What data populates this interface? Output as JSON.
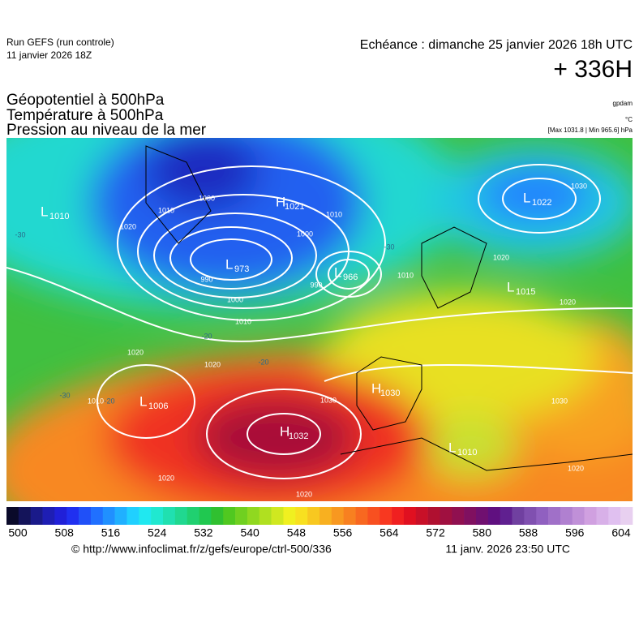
{
  "header": {
    "run": "Run GEFS (run controle)",
    "run_date": "11 janvier 2026 18Z",
    "forecast": "Echéance : dimanche 25 janvier 2026 18h UTC",
    "lead": "+ 336H"
  },
  "titles": [
    "Géopotentiel à 500hPa",
    "Température à 500hPa",
    "Pression au niveau de la mer"
  ],
  "units": [
    "gpdam",
    "°C",
    "[Max 1031.8 | Min 965.6] hPa"
  ],
  "map": {
    "centers": [
      {
        "letter": "L",
        "pressure": 1010
      },
      {
        "letter": "H",
        "pressure": 1021
      },
      {
        "letter": "L",
        "pressure": 973
      },
      {
        "letter": "L",
        "pressure": 966
      },
      {
        "letter": "L",
        "pressure": 1022
      },
      {
        "letter": "L",
        "pressure": 1015
      },
      {
        "letter": "H",
        "pressure": 1030
      },
      {
        "letter": "L",
        "pressure": 1006
      },
      {
        "letter": "H",
        "pressure": 1032
      },
      {
        "letter": "L",
        "pressure": 1010
      }
    ],
    "isobar_labels": [
      1020,
      1010,
      1000,
      990,
      1000,
      1010,
      1000,
      1010,
      990,
      1020,
      1020,
      1010,
      1030,
      1020,
      1020,
      1020,
      1020,
      1030,
      1030,
      1020,
      1010
    ],
    "isotherm_labels": [
      -30,
      -30,
      -20,
      -20,
      -20,
      -30
    ]
  },
  "colorbar": {
    "colors": [
      "#0a0a2a",
      "#14145a",
      "#1a1a8a",
      "#1e1eb4",
      "#2020d8",
      "#2030f0",
      "#2050f8",
      "#2070ff",
      "#2090ff",
      "#20b0ff",
      "#20d0ff",
      "#20e8f0",
      "#20e8d0",
      "#20e0b0",
      "#20d890",
      "#20d070",
      "#20c850",
      "#30c030",
      "#50c820",
      "#70d020",
      "#90d820",
      "#b0e020",
      "#d0e820",
      "#f0f020",
      "#f8e020",
      "#f8c820",
      "#f8b020",
      "#f89820",
      "#f88020",
      "#f86820",
      "#f85020",
      "#f83820",
      "#f02020",
      "#e01020",
      "#c81028",
      "#b01030",
      "#a01040",
      "#901050",
      "#801060",
      "#701070",
      "#601080",
      "#602090",
      "#7040a0",
      "#8050b0",
      "#9060c0",
      "#a070c8",
      "#b080d0",
      "#c090d8",
      "#d0a0e0",
      "#d8b0e8",
      "#e0c0f0",
      "#e8d0f0"
    ],
    "ticks": [
      500,
      508,
      516,
      524,
      532,
      540,
      548,
      556,
      564,
      572,
      580,
      588,
      596,
      604
    ]
  },
  "footer": {
    "url": "© http://www.infoclimat.fr/z/gefs/europe/ctrl-500/336",
    "timestamp": "11 janv. 2026 23:50 UTC"
  }
}
